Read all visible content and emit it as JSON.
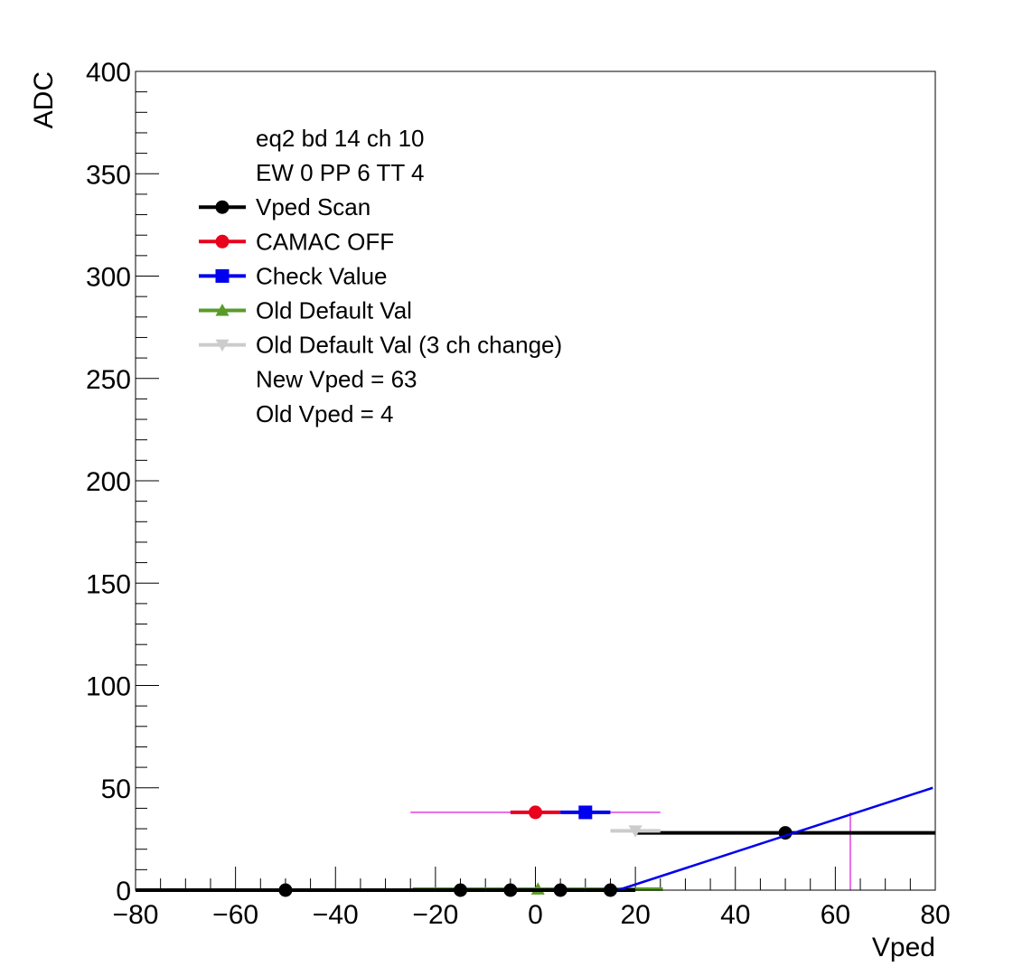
{
  "chart_data": {
    "type": "scatter",
    "xlabel": "Vped",
    "ylabel": "ADC",
    "xlim": [
      -80,
      80
    ],
    "ylim": [
      0,
      400
    ],
    "x_ticks": [
      -80,
      -60,
      -40,
      -20,
      0,
      20,
      40,
      60,
      80
    ],
    "y_ticks": [
      0,
      50,
      100,
      150,
      200,
      250,
      300,
      350,
      400
    ],
    "x_tick_labels": [
      "−80",
      "−60",
      "−40",
      "−20",
      "0",
      "20",
      "40",
      "60",
      "80"
    ],
    "y_tick_labels": [
      "0",
      "50",
      "100",
      "150",
      "200",
      "250",
      "300",
      "350",
      "400"
    ],
    "grid": false,
    "legend_position": "top-left",
    "legend_header": [
      "eq2 bd 14 ch 10",
      "EW 0 PP 6 TT 4"
    ],
    "legend_footer": [
      "New Vped = 63",
      "Old Vped = 4"
    ],
    "series": [
      {
        "name": "Vped Scan",
        "color": "#000000",
        "marker": "circle",
        "points": [
          {
            "x": -50,
            "y": 0,
            "xerr": 30
          },
          {
            "x": -15,
            "y": 0,
            "xerr": 5
          },
          {
            "x": -5,
            "y": 0,
            "xerr": 5
          },
          {
            "x": 5,
            "y": 0,
            "xerr": 5
          },
          {
            "x": 15,
            "y": 0,
            "xerr": 5
          },
          {
            "x": 50,
            "y": 28,
            "xerr": 30
          }
        ]
      },
      {
        "name": "CAMAC OFF",
        "color": "#e8001c",
        "marker": "circle",
        "points": [
          {
            "x": 0,
            "y": 38,
            "xerr": 5
          }
        ]
      },
      {
        "name": "Check Value",
        "color": "#0000ee",
        "marker": "square",
        "points": [
          {
            "x": 10,
            "y": 38,
            "xerr": 5
          }
        ]
      },
      {
        "name": "Old Default Val",
        "color": "#5a9a2a",
        "marker": "triangle-up",
        "points": [
          {
            "x": 0.5,
            "y": 0.5,
            "xerr": 25
          }
        ]
      },
      {
        "name": "Old Default Val (3 ch change)",
        "color": "#cccccc",
        "marker": "triangle-down",
        "points": [
          {
            "x": 20,
            "y": 29,
            "xerr": 5
          }
        ]
      }
    ],
    "fit_line": {
      "color": "#0000ee",
      "x": [
        16.5,
        79.5
      ],
      "y": [
        0,
        50
      ]
    },
    "markers": {
      "color": "#e040e0",
      "horizontal": {
        "y": 38,
        "x": [
          -25,
          25
        ]
      },
      "vertical": {
        "x": 63,
        "y": [
          0,
          38
        ]
      }
    }
  }
}
